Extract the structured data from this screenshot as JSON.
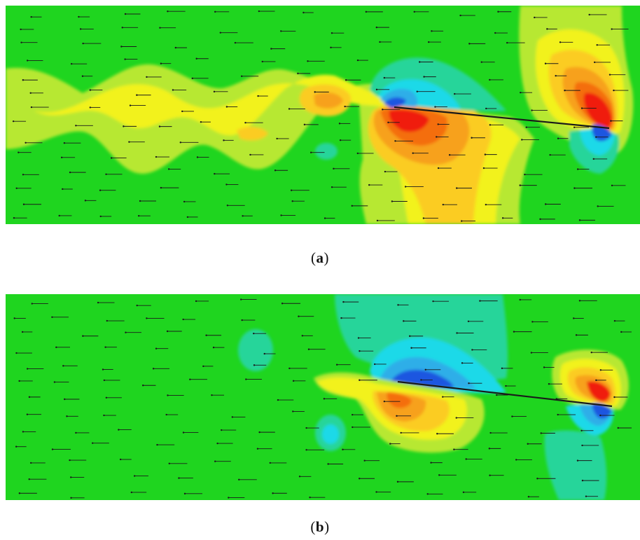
{
  "figure": {
    "panels": [
      {
        "id": "a",
        "caption_open": "(",
        "caption_letter": "a",
        "caption_close": ")"
      },
      {
        "id": "b",
        "caption_open": "(",
        "caption_letter": "b",
        "caption_close": ")"
      }
    ],
    "colors": {
      "background": "#1fd51f",
      "light_yellow_green": "#b7e830",
      "yellow": "#f2f21a",
      "light_orange": "#fbcc22",
      "orange": "#f7a11a",
      "dark_orange": "#f46e10",
      "red": "#f01a08",
      "cyan_green": "#27d59a",
      "cyan": "#1ad9e8",
      "light_blue": "#2faee8",
      "blue": "#1f56e0",
      "arrow": "#1a1a1a"
    }
  }
}
